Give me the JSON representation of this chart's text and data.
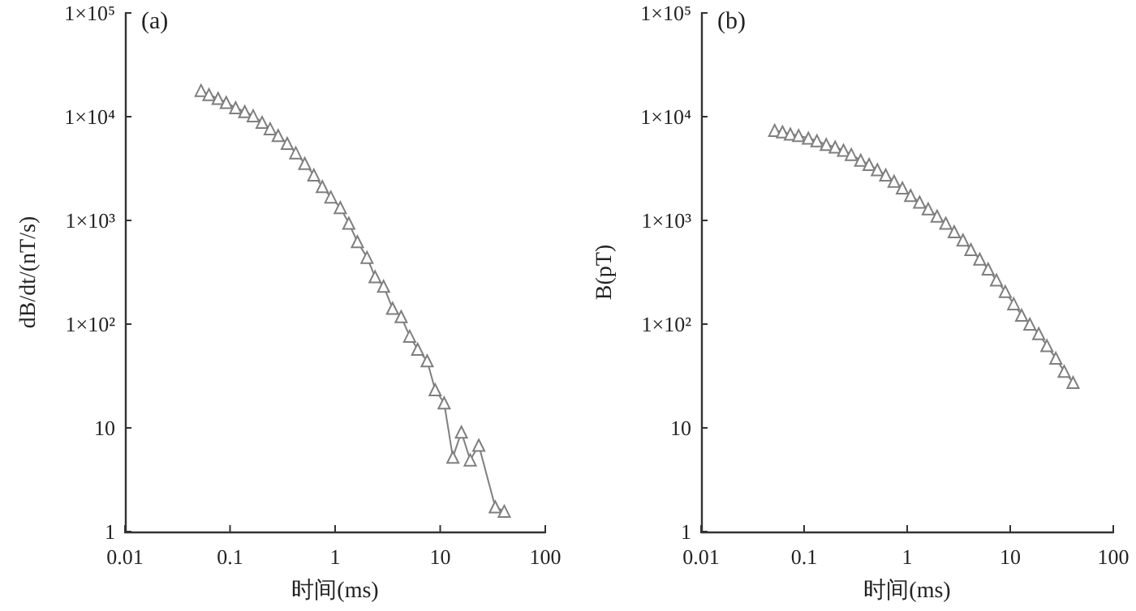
{
  "chart_data": [
    {
      "type": "line",
      "annotations": [
        "(a)"
      ],
      "xlabel": "时间(ms)",
      "ylabel": "dB/dt/(nT/s)",
      "log": "xy",
      "grid": false,
      "marker": "triangle",
      "line_style": "solid",
      "xlim": [
        0.01,
        100
      ],
      "xticks": [
        0.01,
        0.1,
        1,
        10,
        100
      ],
      "ylim": [
        1,
        100000
      ],
      "yticks": [
        {
          "value": 1,
          "label": "1"
        },
        {
          "value": 10,
          "label": "10"
        },
        {
          "value": 100,
          "label": "1×10²"
        },
        {
          "value": 1000,
          "label": "1×10³"
        },
        {
          "value": 10000,
          "label": "1×10⁴"
        },
        {
          "value": 100000,
          "label": "1×10⁵"
        }
      ],
      "series": [
        {
          "color": "#7f7f7f",
          "x": [
            0.053,
            0.063,
            0.077,
            0.092,
            0.113,
            0.138,
            0.166,
            0.202,
            0.241,
            0.287,
            0.35,
            0.422,
            0.514,
            0.627,
            0.755,
            0.91,
            1.12,
            1.35,
            1.63,
            2.01,
            2.4,
            2.89,
            3.52,
            4.25,
            5.12,
            6.1,
            7.51,
            8.95,
            10.9,
            13.2,
            15.9,
            19.3,
            23.3,
            33.4,
            40.7
          ],
          "values": [
            17900,
            16300,
            15000,
            13700,
            12200,
            11200,
            10200,
            8800,
            7650,
            6580,
            5520,
            4480,
            3540,
            2740,
            2120,
            1680,
            1330,
            938,
            624,
            440,
            286,
            232,
            142,
            118,
            76.5,
            57.2,
            44.3,
            23.3,
            17.4,
            5.2,
            9.1,
            4.9,
            6.8,
            1.73,
            1.57
          ]
        }
      ]
    },
    {
      "type": "line",
      "annotations": [
        "(b)"
      ],
      "xlabel": "时间(ms)",
      "ylabel": "B(pT)",
      "log": "xy",
      "grid": false,
      "marker": "triangle",
      "line_style": "solid",
      "xlim": [
        0.01,
        100
      ],
      "xticks": [
        0.01,
        0.1,
        1,
        10,
        100
      ],
      "ylim": [
        1,
        100000
      ],
      "yticks": [
        {
          "value": 1,
          "label": "1"
        },
        {
          "value": 10,
          "label": "10"
        },
        {
          "value": 100,
          "label": "1×10²"
        },
        {
          "value": 1000,
          "label": "1×10³"
        },
        {
          "value": 10000,
          "label": "1×10⁴"
        },
        {
          "value": 100000,
          "label": "1×10⁵"
        }
      ],
      "series": [
        {
          "color": "#7f7f7f",
          "x": [
            0.0518,
            0.0617,
            0.0735,
            0.0885,
            0.11,
            0.133,
            0.164,
            0.2,
            0.241,
            0.287,
            0.354,
            0.427,
            0.514,
            0.619,
            0.746,
            0.899,
            1.08,
            1.32,
            1.6,
            1.95,
            2.37,
            2.86,
            3.48,
            4.15,
            5.06,
            6.1,
            7.35,
            8.95,
            10.8,
            12.9,
            15.5,
            18.9,
            22.7,
            27.7,
            33.4,
            40.7
          ],
          "values": [
            7380,
            7130,
            6790,
            6570,
            6200,
            5850,
            5390,
            5090,
            4740,
            4320,
            3800,
            3460,
            3080,
            2740,
            2380,
            2050,
            1740,
            1500,
            1290,
            1100,
            938,
            778,
            646,
            523,
            424,
            340,
            266,
            206,
            157,
            122,
            100,
            81,
            62,
            46.9,
            35,
            27.4
          ]
        }
      ]
    }
  ]
}
